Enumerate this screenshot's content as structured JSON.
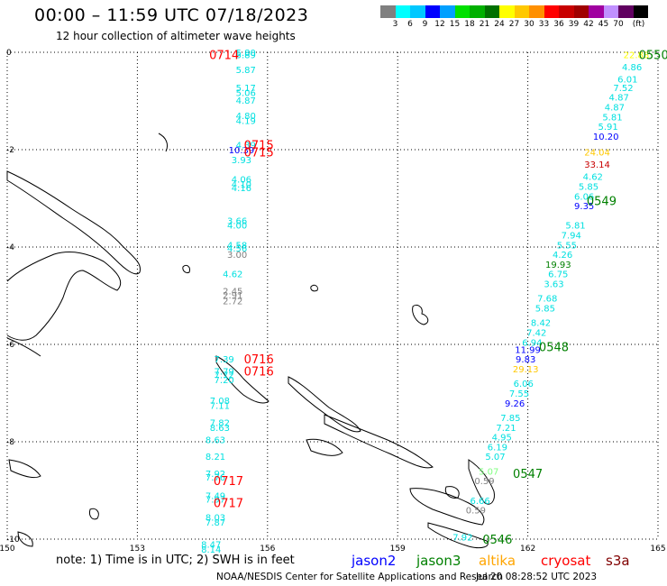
{
  "header": {
    "title": "00:00 – 11:59 UTC 07/18/2023",
    "subtitle": "12 hour collection of altimeter wave heights"
  },
  "colorbar": {
    "colors": [
      "#808080",
      "#00ffff",
      "#00c8ff",
      "#0000ff",
      "#00a0ff",
      "#00e000",
      "#00b000",
      "#007000",
      "#ffff00",
      "#ffc800",
      "#ff9000",
      "#ff0000",
      "#c80000",
      "#a00000",
      "#a000a0",
      "#c090ff",
      "#600060",
      "#000000"
    ],
    "labels": [
      "3",
      "6",
      "9",
      "12",
      "15",
      "18",
      "21",
      "24",
      "27",
      "30",
      "33",
      "36",
      "39",
      "42",
      "45",
      "70",
      "(ft)"
    ]
  },
  "axes": {
    "xticks": [
      "150",
      "153",
      "156",
      "159",
      "162",
      "165"
    ],
    "yticks": [
      "0",
      "-2",
      "-4",
      "-6",
      "-8",
      "-10"
    ]
  },
  "passes": [
    {
      "label": "0714",
      "color": "#ff0000",
      "x": 155.0,
      "y": -0.05
    },
    {
      "label": "0715",
      "color": "#ff0000",
      "x": 155.8,
      "y": -1.9
    },
    {
      "label": "0715",
      "color": "#ff0000",
      "x": 155.8,
      "y": -2.05
    },
    {
      "label": "0716",
      "color": "#ff0000",
      "x": 155.8,
      "y": -6.3
    },
    {
      "label": "0716",
      "color": "#ff0000",
      "x": 155.8,
      "y": -6.55
    },
    {
      "label": "0717",
      "color": "#ff0000",
      "x": 155.1,
      "y": -8.8
    },
    {
      "label": "0717",
      "color": "#ff0000",
      "x": 155.1,
      "y": -9.25
    },
    {
      "label": "0550",
      "color": "#008000",
      "x": 164.9,
      "y": -0.05
    },
    {
      "label": "0549",
      "color": "#008000",
      "x": 163.7,
      "y": -3.05
    },
    {
      "label": "0548",
      "color": "#008000",
      "x": 162.6,
      "y": -6.05
    },
    {
      "label": "0547",
      "color": "#008000",
      "x": 162.0,
      "y": -8.65
    },
    {
      "label": "0546",
      "color": "#008000",
      "x": 161.3,
      "y": -10.0
    }
  ],
  "measurements": [
    {
      "v": "5.80",
      "c": "#00e0e0",
      "x": 155.5,
      "y": 0.0
    },
    {
      "v": "5.89",
      "c": "#00e0e0",
      "x": 155.5,
      "y": -0.05
    },
    {
      "v": "5.87",
      "c": "#00e0e0",
      "x": 155.5,
      "y": -0.35
    },
    {
      "v": "5.17",
      "c": "#00e0e0",
      "x": 155.5,
      "y": -0.72
    },
    {
      "v": "5.06",
      "c": "#00e0e0",
      "x": 155.5,
      "y": -0.82
    },
    {
      "v": "4.87",
      "c": "#00e0e0",
      "x": 155.5,
      "y": -0.98
    },
    {
      "v": "4.80",
      "c": "#00e0e0",
      "x": 155.5,
      "y": -1.3
    },
    {
      "v": "4.19",
      "c": "#00e0e0",
      "x": 155.5,
      "y": -1.4
    },
    {
      "v": "4.39",
      "c": "#00e0e0",
      "x": 155.5,
      "y": -1.9
    },
    {
      "v": "10.39",
      "c": "#0000ff",
      "x": 155.4,
      "y": -2.0
    },
    {
      "v": "3.93",
      "c": "#00e0e0",
      "x": 155.4,
      "y": -2.2
    },
    {
      "v": "4.06",
      "c": "#00e0e0",
      "x": 155.4,
      "y": -2.6
    },
    {
      "v": "4.10",
      "c": "#00e0e0",
      "x": 155.4,
      "y": -2.7
    },
    {
      "v": "4.16",
      "c": "#00e0e0",
      "x": 155.4,
      "y": -2.78
    },
    {
      "v": "3.66",
      "c": "#00e0e0",
      "x": 155.3,
      "y": -3.45
    },
    {
      "v": "4.00",
      "c": "#00e0e0",
      "x": 155.3,
      "y": -3.55
    },
    {
      "v": "4.58",
      "c": "#00e0e0",
      "x": 155.3,
      "y": -3.95
    },
    {
      "v": "4.56",
      "c": "#00e0e0",
      "x": 155.3,
      "y": -4.02
    },
    {
      "v": "3.00",
      "c": "#808080",
      "x": 155.3,
      "y": -4.15
    },
    {
      "v": "4.62",
      "c": "#00e0e0",
      "x": 155.2,
      "y": -4.55
    },
    {
      "v": "2.45",
      "c": "#808080",
      "x": 155.2,
      "y": -4.9
    },
    {
      "v": "2.91",
      "c": "#808080",
      "x": 155.2,
      "y": -4.98
    },
    {
      "v": "2.72",
      "c": "#808080",
      "x": 155.2,
      "y": -5.1
    },
    {
      "v": "7.39",
      "c": "#00e0e0",
      "x": 155.0,
      "y": -6.3
    },
    {
      "v": "7.79",
      "c": "#00e0e0",
      "x": 155.0,
      "y": -6.55
    },
    {
      "v": "7.72",
      "c": "#00e0e0",
      "x": 155.0,
      "y": -6.62
    },
    {
      "v": "7.20",
      "c": "#00e0e0",
      "x": 155.0,
      "y": -6.72
    },
    {
      "v": "7.08",
      "c": "#00e0e0",
      "x": 154.9,
      "y": -7.15
    },
    {
      "v": "7.11",
      "c": "#00e0e0",
      "x": 154.9,
      "y": -7.25
    },
    {
      "v": "7.82",
      "c": "#00e0e0",
      "x": 154.9,
      "y": -7.6
    },
    {
      "v": "8.63",
      "c": "#00e0e0",
      "x": 154.9,
      "y": -7.7
    },
    {
      "v": "8.63",
      "c": "#00e0e0",
      "x": 154.8,
      "y": -7.95
    },
    {
      "v": "8.21",
      "c": "#00e0e0",
      "x": 154.8,
      "y": -8.3
    },
    {
      "v": "7.92",
      "c": "#00e0e0",
      "x": 154.8,
      "y": -8.65
    },
    {
      "v": "7.76",
      "c": "#00e0e0",
      "x": 154.8,
      "y": -8.72
    },
    {
      "v": "7.49",
      "c": "#00e0e0",
      "x": 154.8,
      "y": -9.1
    },
    {
      "v": "7.97",
      "c": "#00e0e0",
      "x": 154.8,
      "y": -9.18
    },
    {
      "v": "8.03",
      "c": "#00e0e0",
      "x": 154.8,
      "y": -9.55
    },
    {
      "v": "7.87",
      "c": "#00e0e0",
      "x": 154.8,
      "y": -9.65
    },
    {
      "v": "8.47",
      "c": "#00e0e0",
      "x": 154.7,
      "y": -10.1
    },
    {
      "v": "8.14",
      "c": "#00e0e0",
      "x": 154.7,
      "y": -10.2
    },
    {
      "v": "22.88",
      "c": "#ffff00",
      "x": 164.5,
      "y": -0.05
    },
    {
      "v": "4.86",
      "c": "#00e0e0",
      "x": 164.4,
      "y": -0.3
    },
    {
      "v": "6.01",
      "c": "#00e0e0",
      "x": 164.3,
      "y": -0.55
    },
    {
      "v": "7.52",
      "c": "#00e0e0",
      "x": 164.2,
      "y": -0.72
    },
    {
      "v": "4.87",
      "c": "#00e0e0",
      "x": 164.1,
      "y": -0.92
    },
    {
      "v": "4.87",
      "c": "#00e0e0",
      "x": 164.0,
      "y": -1.12
    },
    {
      "v": "5.81",
      "c": "#00e0e0",
      "x": 163.95,
      "y": -1.32
    },
    {
      "v": "5.91",
      "c": "#00e0e0",
      "x": 163.85,
      "y": -1.52
    },
    {
      "v": "10.20",
      "c": "#0000ff",
      "x": 163.8,
      "y": -1.72
    },
    {
      "v": "24.04",
      "c": "#ffc800",
      "x": 163.6,
      "y": -2.05
    },
    {
      "v": "33.14",
      "c": "#c80000",
      "x": 163.6,
      "y": -2.3
    },
    {
      "v": "4.62",
      "c": "#00e0e0",
      "x": 163.5,
      "y": -2.55
    },
    {
      "v": "5.85",
      "c": "#00e0e0",
      "x": 163.4,
      "y": -2.75
    },
    {
      "v": "6.06",
      "c": "#00e0e0",
      "x": 163.3,
      "y": -2.95
    },
    {
      "v": "9.35",
      "c": "#0000ff",
      "x": 163.3,
      "y": -3.15
    },
    {
      "v": "5.81",
      "c": "#00e0e0",
      "x": 163.1,
      "y": -3.55
    },
    {
      "v": "7.94",
      "c": "#00e0e0",
      "x": 163.0,
      "y": -3.75
    },
    {
      "v": "5.55",
      "c": "#00e0e0",
      "x": 162.9,
      "y": -3.95
    },
    {
      "v": "4.26",
      "c": "#00e0e0",
      "x": 162.8,
      "y": -4.15
    },
    {
      "v": "19.93",
      "c": "#008000",
      "x": 162.7,
      "y": -4.35
    },
    {
      "v": "6.75",
      "c": "#00e0e0",
      "x": 162.7,
      "y": -4.55
    },
    {
      "v": "3.63",
      "c": "#00e0e0",
      "x": 162.6,
      "y": -4.75
    },
    {
      "v": "7.68",
      "c": "#00e0e0",
      "x": 162.45,
      "y": -5.05
    },
    {
      "v": "5.85",
      "c": "#00e0e0",
      "x": 162.4,
      "y": -5.25
    },
    {
      "v": "8.42",
      "c": "#00e0e0",
      "x": 162.3,
      "y": -5.55
    },
    {
      "v": "7.42",
      "c": "#00e0e0",
      "x": 162.2,
      "y": -5.75
    },
    {
      "v": "6.94",
      "c": "#00e0e0",
      "x": 162.1,
      "y": -5.95
    },
    {
      "v": "11.99",
      "c": "#0000ff",
      "x": 162.0,
      "y": -6.1
    },
    {
      "v": "9.83",
      "c": "#0000ff",
      "x": 161.95,
      "y": -6.3
    },
    {
      "v": "29.13",
      "c": "#ffc800",
      "x": 161.95,
      "y": -6.5
    },
    {
      "v": "6.06",
      "c": "#00e0e0",
      "x": 161.9,
      "y": -6.8
    },
    {
      "v": "7.55",
      "c": "#00e0e0",
      "x": 161.8,
      "y": -7.0
    },
    {
      "v": "9.26",
      "c": "#0000ff",
      "x": 161.7,
      "y": -7.2
    },
    {
      "v": "7.85",
      "c": "#00e0e0",
      "x": 161.6,
      "y": -7.5
    },
    {
      "v": "7.21",
      "c": "#00e0e0",
      "x": 161.5,
      "y": -7.7
    },
    {
      "v": "4.95",
      "c": "#00e0e0",
      "x": 161.4,
      "y": -7.9
    },
    {
      "v": "6.19",
      "c": "#00e0e0",
      "x": 161.3,
      "y": -8.1
    },
    {
      "v": "5.07",
      "c": "#00e0e0",
      "x": 161.25,
      "y": -8.3
    },
    {
      "v": "5.07",
      "c": "#80ff80",
      "x": 161.1,
      "y": -8.6
    },
    {
      "v": "0.59",
      "c": "#808080",
      "x": 161.0,
      "y": -8.8
    },
    {
      "v": "6.66",
      "c": "#00e0e0",
      "x": 160.9,
      "y": -9.2
    },
    {
      "v": "0.59",
      "c": "#808080",
      "x": 160.8,
      "y": -9.4
    },
    {
      "v": "7.92",
      "c": "#00e0e0",
      "x": 160.5,
      "y": -9.95
    }
  ],
  "legend": {
    "note": "note: 1) Time is in UTC; 2) SWH is in feet",
    "missions": [
      {
        "name": "jason2",
        "color": "#0000ff"
      },
      {
        "name": "jason3",
        "color": "#008000"
      },
      {
        "name": "altika",
        "color": "#ffa500"
      },
      {
        "name": "cryosat",
        "color": "#ff0000"
      },
      {
        "name": "s3a",
        "color": "#800000"
      }
    ]
  },
  "footer": {
    "credit": "NOAA/NESDIS Center for Satellite Applications and Research",
    "timestamp": "Jul 20 08:28:52 UTC 2023"
  }
}
